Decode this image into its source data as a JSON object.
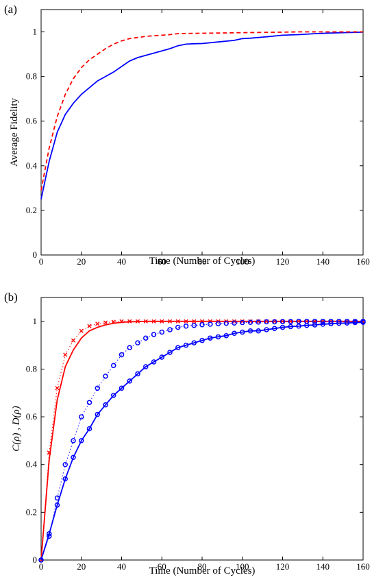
{
  "panels": {
    "a_label": "(a)",
    "b_label": "(b)"
  },
  "chart_data": [
    {
      "type": "line",
      "panel": "(a)",
      "title": "",
      "xlabel": "Time (Number of Cycles)",
      "ylabel": "Average Fidelity",
      "xlim": [
        0,
        160
      ],
      "ylim": [
        0,
        1.1
      ],
      "xticks": [
        0,
        20,
        40,
        60,
        80,
        100,
        120,
        140,
        160
      ],
      "yticks": [
        0,
        0.2,
        0.4,
        0.6,
        0.8,
        1
      ],
      "grid": false,
      "legend": "none",
      "series": [
        {
          "style": "solid",
          "color": "#0000ff",
          "x": [
            0,
            4,
            8,
            12,
            16,
            20,
            24,
            28,
            32,
            36,
            40,
            44,
            48,
            52,
            56,
            60,
            64,
            68,
            72,
            76,
            80,
            88,
            96,
            100,
            104,
            112,
            120,
            128,
            136,
            144,
            152,
            160
          ],
          "y": [
            0.25,
            0.42,
            0.55,
            0.63,
            0.68,
            0.72,
            0.75,
            0.78,
            0.8,
            0.82,
            0.845,
            0.87,
            0.885,
            0.895,
            0.905,
            0.915,
            0.925,
            0.938,
            0.945,
            0.947,
            0.948,
            0.955,
            0.962,
            0.97,
            0.972,
            0.978,
            0.985,
            0.988,
            0.992,
            0.995,
            0.997,
            0.999
          ]
        },
        {
          "style": "dashed",
          "color": "#ff0000",
          "x": [
            0,
            4,
            8,
            12,
            16,
            20,
            24,
            28,
            32,
            36,
            40,
            44,
            48,
            52,
            56,
            60,
            64,
            68,
            72,
            80,
            88,
            96,
            104,
            112,
            120,
            128,
            136,
            144,
            152,
            160
          ],
          "y": [
            0.29,
            0.48,
            0.62,
            0.72,
            0.79,
            0.84,
            0.875,
            0.9,
            0.925,
            0.945,
            0.96,
            0.97,
            0.975,
            0.98,
            0.983,
            0.985,
            0.988,
            0.992,
            0.993,
            0.994,
            0.995,
            0.996,
            0.997,
            0.998,
            0.999,
            1.0,
            1.0,
            1.0,
            1.0,
            1.0
          ]
        }
      ]
    },
    {
      "type": "line",
      "panel": "(b)",
      "title": "",
      "xlabel": "Time (Number of Cycles)",
      "ylabel": "C(ρ) , D(ρ)",
      "xlim": [
        0,
        160
      ],
      "ylim": [
        0,
        1.1
      ],
      "xticks": [
        0,
        20,
        40,
        60,
        80,
        100,
        120,
        140,
        160
      ],
      "yticks": [
        0,
        0.2,
        0.4,
        0.6,
        0.8,
        1
      ],
      "grid": false,
      "legend": "none",
      "series": [
        {
          "style": "solid",
          "color": "#ff0000",
          "x": [
            0,
            4,
            8,
            12,
            16,
            20,
            24,
            28,
            32,
            36,
            40,
            44,
            48,
            52,
            56,
            60,
            80,
            100,
            120,
            140,
            160
          ],
          "y": [
            0,
            0.42,
            0.67,
            0.81,
            0.88,
            0.93,
            0.96,
            0.975,
            0.985,
            0.992,
            0.996,
            0.998,
            0.999,
            1.0,
            1.0,
            1.0,
            1.0,
            1.0,
            1.0,
            1.0,
            1.0
          ]
        },
        {
          "style": "dotted-markers",
          "marker": "x",
          "color": "#ff0000",
          "x": [
            0,
            4,
            8,
            12,
            16,
            20,
            24,
            28,
            32,
            36,
            40,
            44,
            48,
            52,
            56,
            60,
            64,
            68,
            72,
            76,
            80,
            84,
            88,
            92,
            96,
            100,
            104,
            108,
            112,
            116,
            120,
            124,
            128,
            132,
            136,
            140,
            144,
            148,
            152,
            156,
            160
          ],
          "y": [
            0,
            0.45,
            0.72,
            0.86,
            0.92,
            0.96,
            0.98,
            0.99,
            0.995,
            0.998,
            1.0,
            1.0,
            1.0,
            1.0,
            1.0,
            1.0,
            1.0,
            1.0,
            1.0,
            1.0,
            1.0,
            1.0,
            1.0,
            1.0,
            1.0,
            1.0,
            1.0,
            1.0,
            1.0,
            1.0,
            1.0,
            1.0,
            1.0,
            1.0,
            1.0,
            1.0,
            1.0,
            1.0,
            1.0,
            1.0,
            1.0
          ]
        },
        {
          "style": "solid-markers",
          "marker": "o",
          "color": "#0000ff",
          "x": [
            0,
            4,
            8,
            12,
            16,
            20,
            24,
            28,
            32,
            36,
            40,
            44,
            48,
            52,
            56,
            60,
            64,
            68,
            72,
            76,
            80,
            84,
            88,
            92,
            96,
            100,
            104,
            108,
            112,
            116,
            120,
            124,
            128,
            132,
            136,
            140,
            144,
            148,
            152,
            156,
            160
          ],
          "y": [
            0,
            0.11,
            0.23,
            0.34,
            0.43,
            0.5,
            0.55,
            0.61,
            0.65,
            0.69,
            0.72,
            0.75,
            0.78,
            0.81,
            0.83,
            0.85,
            0.87,
            0.89,
            0.9,
            0.91,
            0.92,
            0.93,
            0.935,
            0.94,
            0.95,
            0.955,
            0.96,
            0.96,
            0.965,
            0.97,
            0.975,
            0.978,
            0.98,
            0.983,
            0.985,
            0.988,
            0.99,
            0.992,
            0.993,
            0.995,
            0.996
          ]
        },
        {
          "style": "dotted-markers",
          "marker": "o",
          "color": "#0000ff",
          "x": [
            0,
            4,
            8,
            12,
            16,
            20,
            24,
            28,
            32,
            36,
            40,
            44,
            48,
            52,
            56,
            60,
            64,
            68,
            72,
            76,
            80,
            84,
            88,
            92,
            96,
            100,
            104,
            108,
            112,
            116,
            120,
            124,
            128,
            132,
            136,
            140,
            144,
            148,
            152,
            156,
            160
          ],
          "y": [
            0,
            0.1,
            0.26,
            0.4,
            0.5,
            0.6,
            0.66,
            0.72,
            0.77,
            0.815,
            0.86,
            0.89,
            0.91,
            0.93,
            0.945,
            0.955,
            0.965,
            0.975,
            0.98,
            0.983,
            0.986,
            0.988,
            0.99,
            0.992,
            0.993,
            0.995,
            0.996,
            0.997,
            0.998,
            0.998,
            0.999,
            0.999,
            1.0,
            1.0,
            1.0,
            1.0,
            1.0,
            1.0,
            1.0,
            1.0,
            1.0
          ]
        }
      ]
    }
  ]
}
